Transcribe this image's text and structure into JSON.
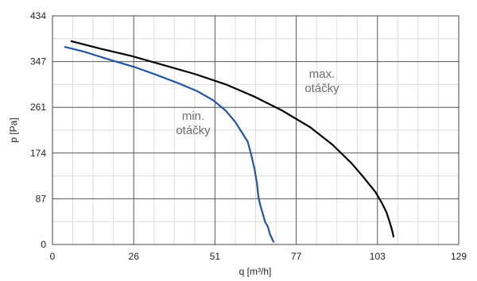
{
  "chart_data": {
    "type": "line",
    "xlabel": "q [m³/h]",
    "ylabel": "p [Pa]",
    "xlim": [
      0,
      129
    ],
    "ylim": [
      0,
      434
    ],
    "x_ticks": [
      0,
      26,
      51,
      77,
      103,
      129
    ],
    "y_ticks": [
      0,
      87,
      174,
      261,
      347,
      434
    ],
    "grid": true,
    "minor_grid": true,
    "series": [
      {
        "name": "max. otáčky",
        "color": "#000000",
        "annotation": [
          "max.",
          "otáčky"
        ],
        "x": [
          6,
          15,
          25,
          35,
          45,
          55,
          64,
          73,
          82,
          89,
          95,
          99,
          102.5,
          104.5,
          106,
          107,
          107.8,
          108.3
        ],
        "y": [
          386,
          372,
          358,
          341,
          324,
          304,
          281,
          254,
          222,
          189,
          154,
          126,
          100,
          80,
          62,
          44,
          28,
          15
        ]
      },
      {
        "name": "min. otáčky",
        "color": "#2155a3",
        "annotation": [
          "min.",
          "otáčky"
        ],
        "x": [
          4,
          10,
          17,
          26,
          33,
          40,
          46,
          51,
          55,
          58,
          60,
          62,
          63.2,
          64.2,
          64.9,
          65.4,
          66.1,
          66.9,
          67.5,
          68.4,
          69.1,
          70.2
        ],
        "y": [
          375,
          366,
          353,
          337,
          322,
          306,
          291,
          274,
          254,
          233,
          214,
          195,
          168,
          142,
          117,
          90,
          72,
          56,
          43,
          34,
          19,
          5
        ]
      }
    ]
  }
}
